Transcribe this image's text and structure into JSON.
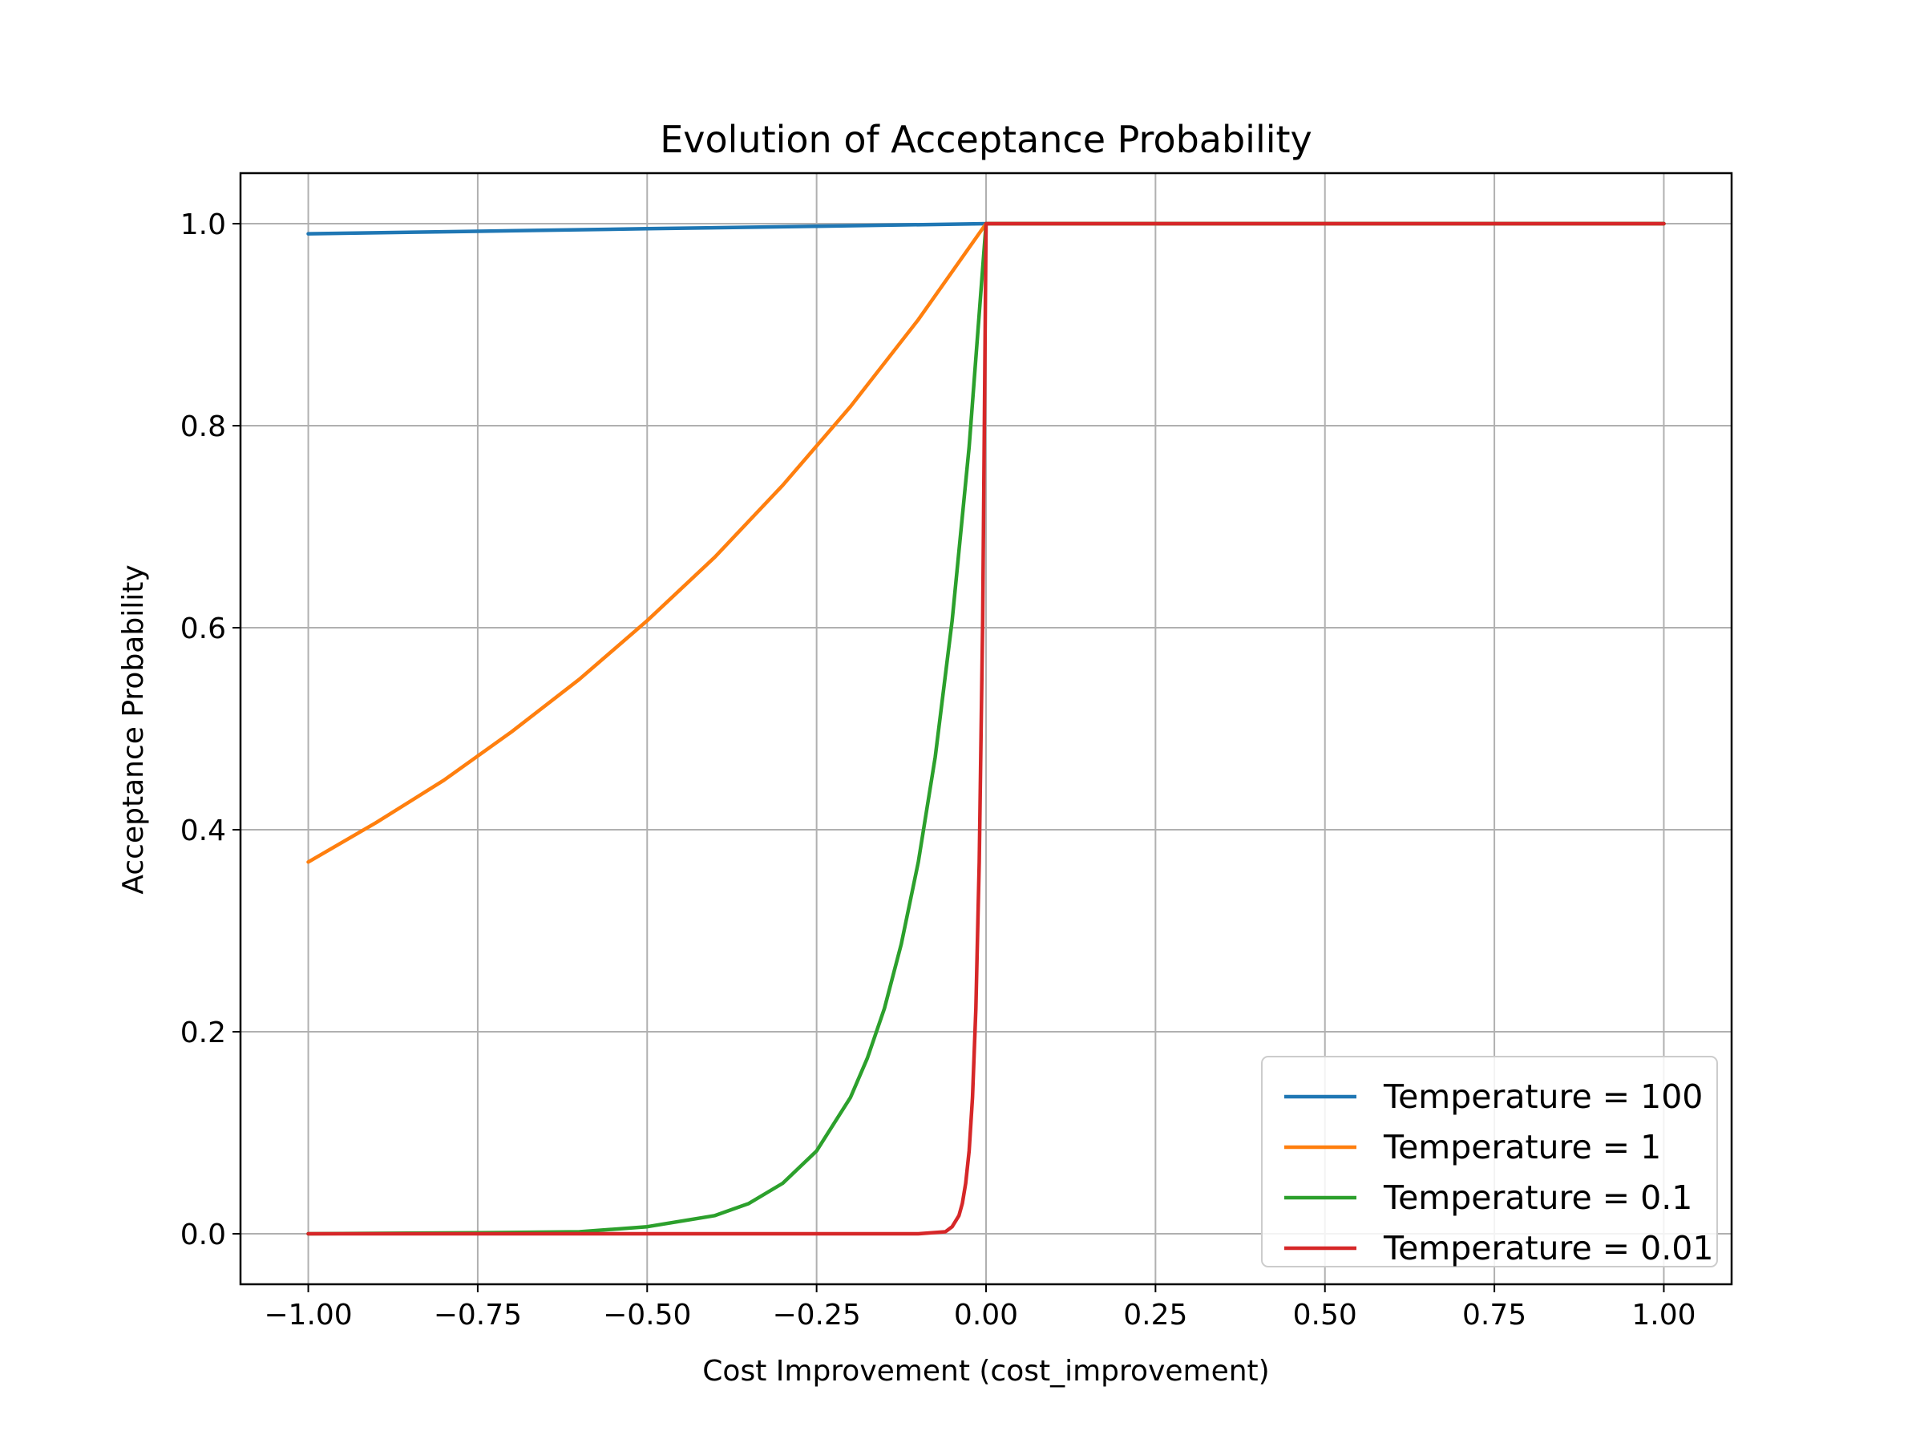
{
  "chart_data": {
    "type": "line",
    "title": "Evolution of Acceptance Probability",
    "xlabel": "Cost Improvement (cost_improvement)",
    "ylabel": "Acceptance Probability",
    "xlim": [
      -1.1,
      1.1
    ],
    "ylim": [
      -0.05,
      1.05
    ],
    "xticks": [
      -1.0,
      -0.75,
      -0.5,
      -0.25,
      0.0,
      0.25,
      0.5,
      0.75,
      1.0
    ],
    "xtick_labels": [
      "−1.00",
      "−0.75",
      "−0.50",
      "−0.25",
      "0.00",
      "0.25",
      "0.50",
      "0.75",
      "1.00"
    ],
    "yticks": [
      0.0,
      0.2,
      0.4,
      0.6,
      0.8,
      1.0
    ],
    "ytick_labels": [
      "0.0",
      "0.2",
      "0.4",
      "0.6",
      "0.8",
      "1.0"
    ],
    "grid": true,
    "legend_position": "lower-right",
    "series": [
      {
        "name": "Temperature = 100",
        "color": "#1f77b4",
        "x": [
          -1.0,
          -0.75,
          -0.5,
          -0.25,
          0.0,
          0.25,
          0.5,
          0.75,
          1.0
        ],
        "y": [
          0.99,
          0.9925,
          0.995,
          0.9975,
          1.0,
          1.0,
          1.0,
          1.0,
          1.0
        ]
      },
      {
        "name": "Temperature = 1",
        "color": "#ff7f0e",
        "x": [
          -1.0,
          -0.9,
          -0.8,
          -0.7,
          -0.6,
          -0.5,
          -0.4,
          -0.3,
          -0.2,
          -0.1,
          0.0,
          0.25,
          0.5,
          0.75,
          1.0
        ],
        "y": [
          0.368,
          0.407,
          0.449,
          0.497,
          0.549,
          0.607,
          0.67,
          0.741,
          0.819,
          0.905,
          1.0,
          1.0,
          1.0,
          1.0,
          1.0
        ]
      },
      {
        "name": "Temperature = 0.1",
        "color": "#2ca02c",
        "x": [
          -1.0,
          -0.75,
          -0.6,
          -0.5,
          -0.4,
          -0.35,
          -0.3,
          -0.25,
          -0.2,
          -0.175,
          -0.15,
          -0.125,
          -0.1,
          -0.075,
          -0.05,
          -0.025,
          0.0,
          0.25,
          0.5,
          0.75,
          1.0
        ],
        "y": [
          0.0,
          0.001,
          0.002,
          0.007,
          0.018,
          0.03,
          0.05,
          0.082,
          0.135,
          0.174,
          0.223,
          0.287,
          0.368,
          0.472,
          0.607,
          0.779,
          1.0,
          1.0,
          1.0,
          1.0,
          1.0
        ]
      },
      {
        "name": "Temperature = 0.01",
        "color": "#d62728",
        "x": [
          -1.0,
          -0.5,
          -0.1,
          -0.06,
          -0.05,
          -0.04,
          -0.035,
          -0.03,
          -0.025,
          -0.02,
          -0.015,
          -0.01,
          -0.005,
          0.0,
          0.25,
          0.5,
          0.75,
          1.0
        ],
        "y": [
          0.0,
          0.0,
          0.0,
          0.002,
          0.007,
          0.018,
          0.03,
          0.05,
          0.082,
          0.135,
          0.223,
          0.368,
          0.607,
          1.0,
          1.0,
          1.0,
          1.0,
          1.0
        ]
      }
    ]
  }
}
